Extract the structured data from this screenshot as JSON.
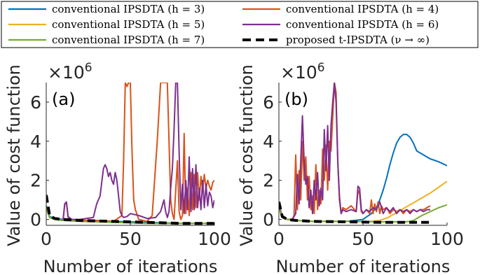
{
  "legend": {
    "placement": "top",
    "entries": [
      {
        "label": "conventional IPSDTA (h = 3)",
        "color": "#0072BD",
        "dash": false
      },
      {
        "label": "conventional IPSDTA (h = 4)",
        "color": "#D95319",
        "dash": false
      },
      {
        "label": "conventional IPSDTA (h = 5)",
        "color": "#EDB120",
        "dash": false
      },
      {
        "label": "conventional IPSDTA (h = 6)",
        "color": "#7E2F8E",
        "dash": false
      },
      {
        "label": "conventional IPSDTA (h = 7)",
        "color": "#77AC30",
        "dash": false
      },
      {
        "label": "proposed t-IPSDTA (ν → ∞)",
        "color": "#000000",
        "dash": true
      }
    ]
  },
  "chart_data": [
    {
      "type": "line",
      "panel_label": "(a)",
      "xlabel": "Number of iterations",
      "ylabel": "Value of cost function",
      "y_exponent_label": "×10^6",
      "xlim": [
        0,
        100
      ],
      "ylim": [
        -0.3,
        7
      ],
      "xticks": [
        0,
        50,
        100
      ],
      "yticks": [
        0,
        2,
        4,
        6
      ],
      "grid": false,
      "series": [
        {
          "name": "conventional IPSDTA (h = 3)",
          "x": [
            0,
            2,
            5,
            10,
            20,
            40,
            60,
            80,
            100
          ],
          "y": [
            0.7,
            0.15,
            0.05,
            0.0,
            -0.05,
            -0.1,
            -0.15,
            -0.2,
            -0.2
          ]
        },
        {
          "name": "conventional IPSDTA (h = 4)",
          "x": [
            0,
            2,
            5,
            10,
            11,
            12,
            13,
            15,
            20,
            30,
            40,
            45,
            46,
            47,
            48,
            49,
            50,
            51,
            52,
            53,
            55,
            60,
            63,
            66,
            68,
            69,
            70,
            71,
            72,
            73,
            74,
            75,
            76,
            77,
            78,
            79,
            80,
            81,
            82,
            83,
            84,
            85,
            86,
            87,
            88,
            89,
            90,
            91,
            92,
            93,
            94,
            95,
            96,
            97,
            98,
            99,
            100
          ],
          "y": [
            0.6,
            0.1,
            0.0,
            -0.05,
            0.8,
            0.85,
            0.1,
            0.0,
            -0.05,
            -0.05,
            -0.1,
            0.2,
            3.0,
            7.0,
            6.8,
            7.0,
            7.0,
            3.5,
            1.0,
            0.5,
            0.0,
            -0.1,
            0.2,
            4.0,
            7.0,
            7.0,
            7.0,
            7.0,
            7.0,
            4.0,
            1.0,
            0.3,
            0.0,
            1.5,
            3.0,
            0.4,
            0.0,
            0.2,
            4.4,
            0.3,
            1.6,
            0.2,
            2.4,
            0.5,
            2.3,
            0.6,
            2.4,
            1.0,
            2.2,
            1.5,
            2.3,
            1.6,
            2.0,
            1.7,
            1.5,
            1.9,
            2.0
          ]
        },
        {
          "name": "conventional IPSDTA (h = 5)",
          "x": [
            0,
            2,
            5,
            10,
            20,
            40,
            60,
            80,
            100
          ],
          "y": [
            0.6,
            0.1,
            0.0,
            -0.05,
            -0.1,
            -0.15,
            -0.2,
            -0.2,
            -0.2
          ]
        },
        {
          "name": "conventional IPSDTA (h = 6)",
          "x": [
            0,
            2,
            5,
            10,
            11,
            12,
            13,
            15,
            20,
            28,
            30,
            32,
            34,
            35,
            36,
            37,
            38,
            39,
            40,
            41,
            42,
            43,
            44,
            45,
            46,
            48,
            50,
            55,
            60,
            65,
            68,
            70,
            71,
            72,
            73,
            74,
            75,
            76,
            77,
            78,
            79,
            80,
            81,
            82,
            83,
            84,
            85,
            86,
            87,
            88,
            89,
            90,
            91,
            92,
            93,
            94,
            95,
            96,
            97,
            98,
            99,
            100
          ],
          "y": [
            0.6,
            0.1,
            0.0,
            -0.05,
            0.8,
            0.9,
            0.15,
            0.0,
            0.0,
            0.1,
            0.8,
            1.2,
            2.6,
            2.8,
            2.6,
            2.2,
            2.4,
            2.0,
            1.8,
            2.4,
            2.0,
            1.2,
            0.4,
            0.2,
            0.1,
            0.15,
            0.3,
            0.2,
            0.05,
            0.1,
            0.4,
            1.0,
            0.4,
            0.1,
            0.4,
            1.6,
            2.6,
            4.6,
            7.0,
            7.0,
            3.5,
            0.5,
            1.8,
            0.3,
            2.0,
            0.5,
            3.2,
            0.4,
            2.6,
            0.5,
            2.8,
            0.6,
            1.6,
            0.5,
            2.0,
            0.6,
            1.8,
            0.7,
            1.4,
            1.2,
            0.6,
            1.0
          ]
        },
        {
          "name": "conventional IPSDTA (h = 7)",
          "x": [
            0,
            2,
            5,
            10,
            20,
            40,
            60,
            80,
            100
          ],
          "y": [
            0.6,
            0.1,
            0.0,
            -0.05,
            -0.1,
            -0.15,
            -0.2,
            -0.2,
            -0.2
          ]
        },
        {
          "name": "proposed t-IPSDTA (ν → ∞)",
          "x": [
            0,
            2,
            5,
            10,
            20,
            40,
            60,
            80,
            100
          ],
          "y": [
            1.25,
            0.2,
            0.05,
            0.0,
            -0.05,
            -0.1,
            -0.15,
            -0.2,
            -0.2
          ]
        }
      ]
    },
    {
      "type": "line",
      "panel_label": "(b)",
      "xlabel": "Number of iterations",
      "ylabel": "Value of cost function",
      "y_exponent_label": "×10^6",
      "xlim": [
        0,
        100
      ],
      "ylim": [
        -0.3,
        7
      ],
      "xticks": [
        0,
        50,
        100
      ],
      "yticks": [
        0,
        2,
        4,
        6
      ],
      "grid": false,
      "series": [
        {
          "name": "conventional IPSDTA (h = 3)",
          "x": [
            0,
            2,
            5,
            10,
            20,
            30,
            40,
            45,
            50,
            55,
            58,
            60,
            62,
            64,
            66,
            68,
            70,
            72,
            74,
            76,
            78,
            80,
            82,
            84,
            86,
            88,
            90,
            95,
            100
          ],
          "y": [
            0.7,
            0.1,
            0.0,
            -0.05,
            -0.1,
            -0.1,
            -0.1,
            -0.05,
            0.0,
            0.3,
            0.6,
            1.0,
            1.5,
            2.1,
            2.8,
            3.4,
            3.9,
            4.2,
            4.35,
            4.35,
            4.2,
            3.9,
            3.5,
            3.4,
            3.3,
            3.2,
            3.1,
            2.95,
            2.75
          ]
        },
        {
          "name": "conventional IPSDTA (h = 4)",
          "x": [
            0,
            2,
            5,
            8,
            9,
            10,
            11,
            12,
            13,
            14,
            15,
            16,
            17,
            18,
            19,
            20,
            21,
            22,
            23,
            24,
            25,
            26,
            27,
            28,
            29,
            30,
            31,
            32,
            33,
            34,
            35,
            36,
            37,
            38,
            40,
            43,
            46,
            47,
            48,
            49,
            50,
            52,
            54,
            55,
            56,
            57,
            58,
            59,
            60,
            61,
            62,
            64,
            66,
            68,
            70,
            72,
            74,
            76,
            78,
            80,
            82,
            84,
            86,
            88,
            90
          ],
          "y": [
            0.8,
            0.1,
            0.0,
            0.0,
            0.2,
            3.3,
            0.5,
            2.5,
            1.0,
            4.0,
            2.0,
            3.2,
            1.0,
            2.2,
            0.5,
            1.2,
            0.3,
            2.8,
            0.5,
            1.5,
            0.8,
            3.6,
            2.0,
            3.8,
            1.5,
            4.0,
            3.5,
            5.2,
            7.0,
            6.5,
            3.0,
            1.0,
            0.3,
            0.6,
            0.5,
            0.7,
            0.4,
            1.5,
            1.3,
            0.4,
            0.3,
            0.5,
            0.3,
            1.0,
            0.3,
            0.8,
            0.4,
            0.9,
            0.3,
            0.7,
            0.5,
            0.6,
            0.3,
            0.5,
            0.4,
            0.5,
            0.3,
            0.5,
            0.4,
            0.5,
            0.4,
            0.5,
            0.5,
            0.6,
            0.7
          ]
        },
        {
          "name": "conventional IPSDTA (h = 5)",
          "x": [
            0,
            2,
            5,
            10,
            20,
            40,
            55,
            60,
            65,
            70,
            75,
            80,
            85,
            90,
            95,
            100
          ],
          "y": [
            0.6,
            0.1,
            0.0,
            -0.05,
            -0.1,
            -0.1,
            -0.1,
            -0.05,
            0.1,
            0.35,
            0.6,
            0.85,
            1.1,
            1.35,
            1.65,
            1.95
          ]
        },
        {
          "name": "conventional IPSDTA (h = 6)",
          "x": [
            0,
            2,
            5,
            8,
            10,
            11,
            12,
            13,
            14,
            15,
            16,
            17,
            18,
            19,
            20,
            21,
            22,
            23,
            24,
            25,
            26,
            27,
            28,
            29,
            30,
            31,
            32,
            33,
            34,
            35,
            36,
            37,
            38,
            40,
            43,
            46,
            47,
            48,
            49,
            50,
            52,
            54,
            56,
            58,
            60,
            62,
            64,
            66,
            68,
            70,
            72,
            74,
            76,
            78,
            80,
            82,
            84,
            86,
            88,
            90
          ],
          "y": [
            0.8,
            0.1,
            0.0,
            0.0,
            0.3,
            2.3,
            0.8,
            3.0,
            5.3,
            3.0,
            1.8,
            2.2,
            0.6,
            1.5,
            0.3,
            2.0,
            1.0,
            2.4,
            0.7,
            1.6,
            1.0,
            4.6,
            2.5,
            4.8,
            2.0,
            4.8,
            6.0,
            7.0,
            6.0,
            3.0,
            1.2,
            0.3,
            0.5,
            0.4,
            0.5,
            0.4,
            1.7,
            1.6,
            0.5,
            0.3,
            0.5,
            0.4,
            0.6,
            0.5,
            0.9,
            0.3,
            0.6,
            0.4,
            0.6,
            0.3,
            0.5,
            0.4,
            0.5,
            0.3,
            0.5,
            0.4,
            0.5,
            0.4,
            0.5,
            0.5
          ]
        },
        {
          "name": "conventional IPSDTA (h = 7)",
          "x": [
            0,
            2,
            5,
            10,
            20,
            40,
            60,
            70,
            75,
            78,
            80,
            82,
            85,
            90,
            95,
            100
          ],
          "y": [
            0.6,
            0.1,
            0.0,
            -0.05,
            -0.1,
            -0.1,
            -0.12,
            -0.12,
            -0.12,
            -0.1,
            -0.05,
            0.05,
            0.2,
            0.4,
            0.6,
            0.75
          ]
        },
        {
          "name": "proposed t-IPSDTA (ν → ∞)",
          "x": [
            0,
            2,
            5,
            10,
            20,
            40,
            60,
            80,
            90
          ],
          "y": [
            0.9,
            0.15,
            0.0,
            -0.05,
            -0.1,
            -0.12,
            -0.15,
            -0.15,
            -0.15
          ]
        }
      ]
    }
  ]
}
